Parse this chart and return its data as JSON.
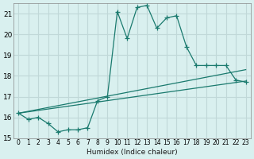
{
  "xlabel": "Humidex (Indice chaleur)",
  "ylabel": "",
  "bg_color": "#d9f0ef",
  "grid_color": "#c0d8d8",
  "line_color": "#1a7a6e",
  "xlim": [
    -0.5,
    23.5
  ],
  "ylim": [
    15,
    21.5
  ],
  "yticks": [
    15,
    16,
    17,
    18,
    19,
    20,
    21
  ],
  "xtick_labels": [
    "0",
    "1",
    "2",
    "3",
    "4",
    "5",
    "6",
    "7",
    "8",
    "9",
    "10",
    "11",
    "12",
    "13",
    "14",
    "15",
    "16",
    "17",
    "18",
    "19",
    "20",
    "21",
    "22",
    "23"
  ],
  "main_x": [
    0,
    1,
    2,
    3,
    4,
    5,
    6,
    7,
    8,
    9,
    10,
    11,
    12,
    13,
    14,
    15,
    16,
    17,
    18,
    19,
    20,
    21,
    22,
    23
  ],
  "main_y": [
    16.2,
    15.9,
    16.0,
    15.7,
    15.3,
    15.4,
    15.4,
    15.5,
    16.8,
    17.0,
    21.1,
    19.8,
    21.3,
    21.4,
    20.3,
    20.8,
    20.9,
    19.4,
    18.5,
    18.5,
    18.5,
    18.5,
    17.8,
    17.7
  ],
  "line2_x": [
    0,
    23
  ],
  "line2_y": [
    16.2,
    17.75
  ],
  "line3_x": [
    0,
    23
  ],
  "line3_y": [
    16.2,
    18.3
  ]
}
